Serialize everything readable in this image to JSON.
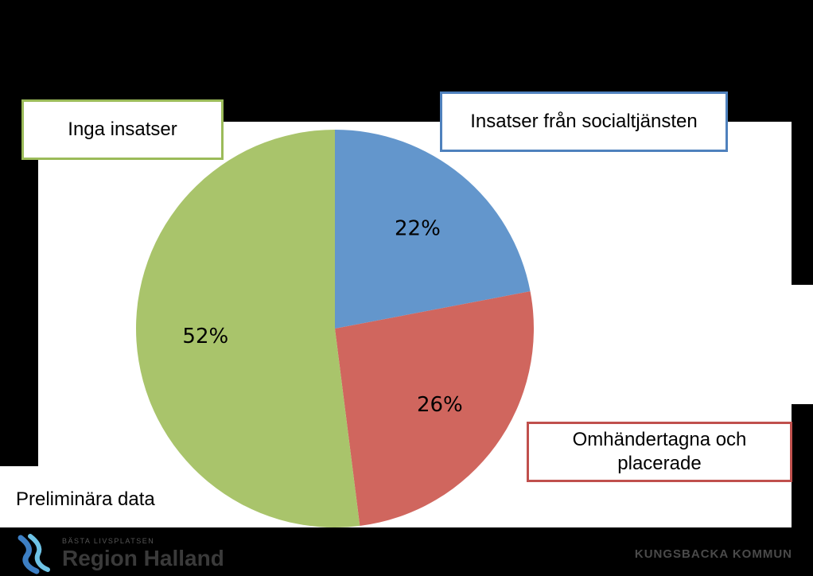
{
  "chart_data": {
    "type": "pie",
    "title": "",
    "slices": [
      {
        "label": "Insatser från socialtjänsten",
        "value": 22,
        "value_label": "22%",
        "color": "#6396cc"
      },
      {
        "label": "Omhändertagna och placerade",
        "value": 26,
        "value_label": "26%",
        "color": "#d0665e"
      },
      {
        "label": "Inga insatser",
        "value": 52,
        "value_label": "52%",
        "color": "#a9c46b"
      }
    ],
    "start_angle": "12 o'clock",
    "direction": "clockwise"
  },
  "note": "Preliminära data",
  "footer": {
    "tagline": "BÄSTA LIVSPLATSEN",
    "organization": "Region Halland",
    "municipality": "KUNGSBACKA KOMMUN"
  },
  "colors": {
    "background": "#000000",
    "panel": "#ffffff",
    "box_border_green": "#9bbb59",
    "box_border_blue": "#4f81bd",
    "box_border_red": "#c0504d"
  }
}
